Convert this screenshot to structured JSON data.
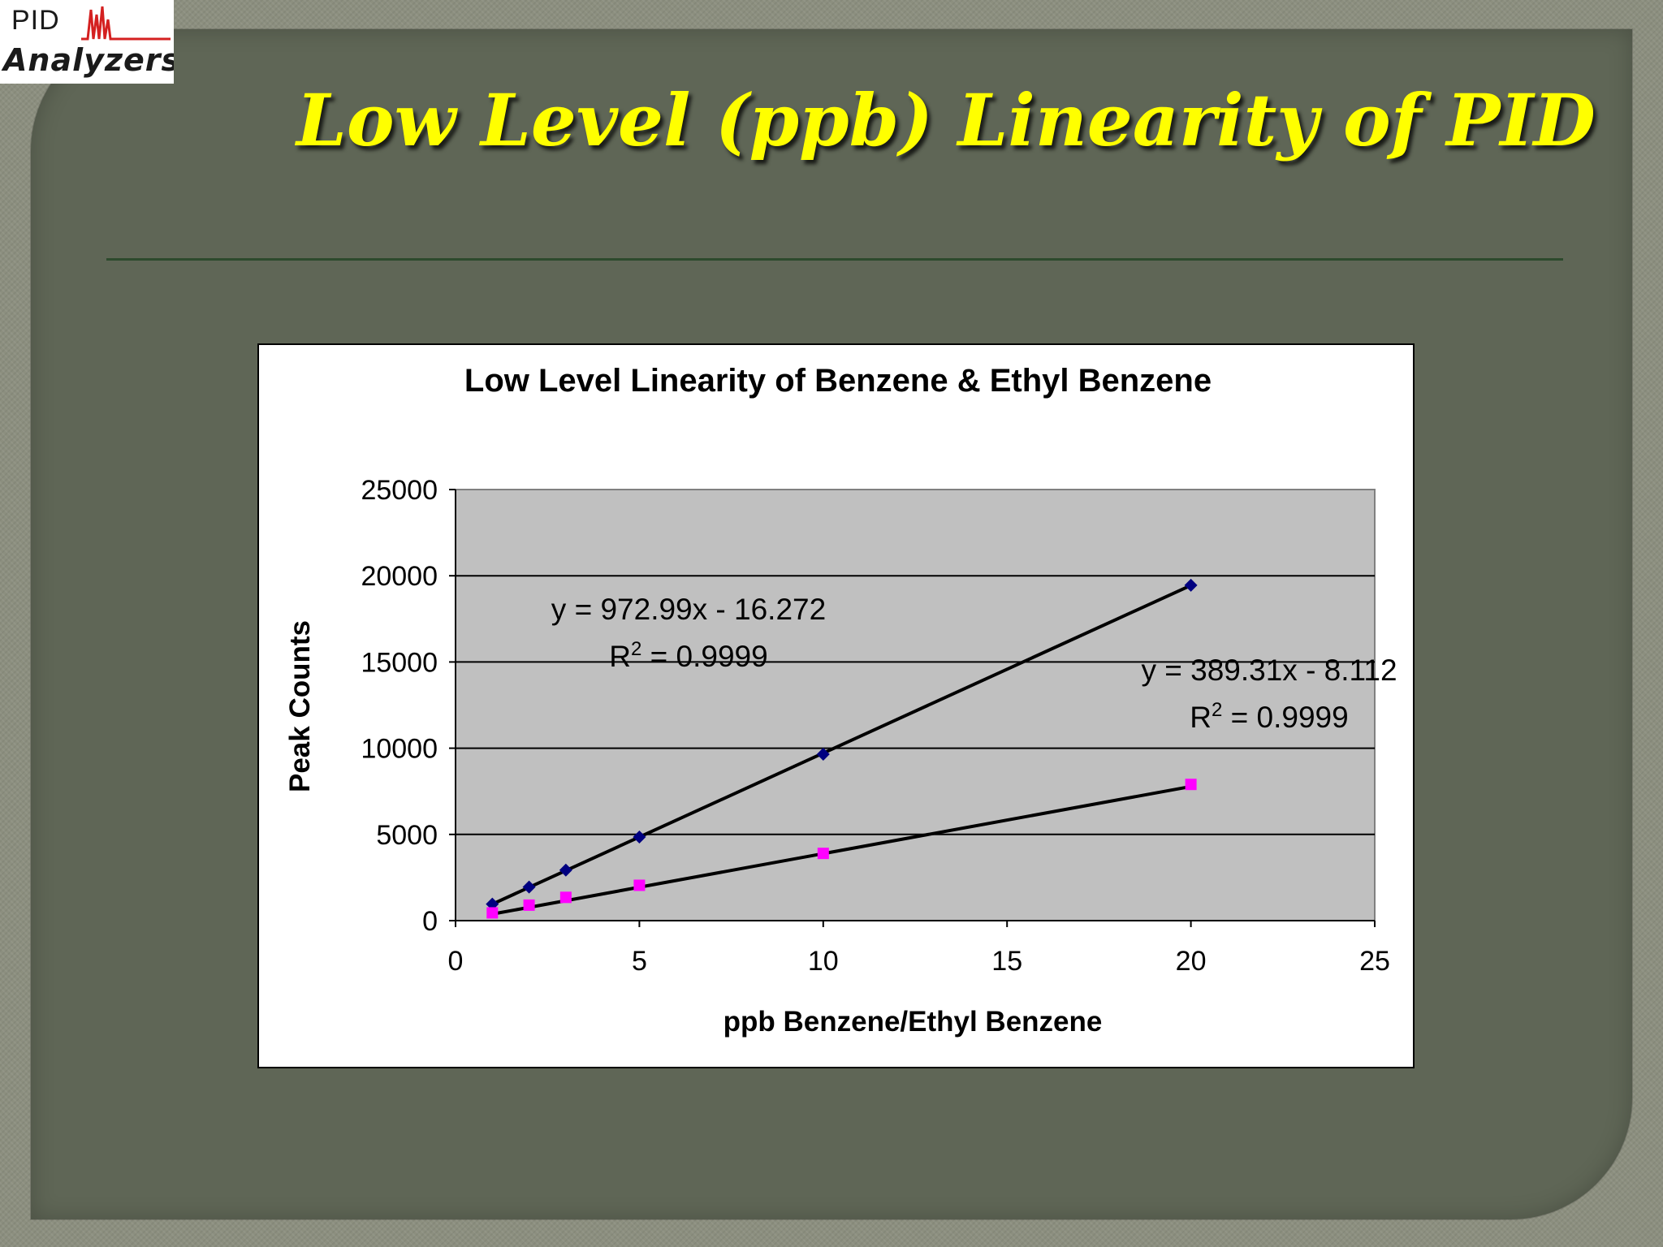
{
  "logo": {
    "text_top": "PID",
    "text_bottom": "Analyzers"
  },
  "slide": {
    "title": "Low Level (ppb) Linearity of PID"
  },
  "colors": {
    "title": "#ffff00",
    "panel": "#5f6656",
    "plot_area": "#c0c0c0",
    "benzene_marker": "#000080",
    "ethyl_benzene_marker": "#ff00ff",
    "trendline": "#000000"
  },
  "chart_data": {
    "type": "scatter",
    "title": "Low Level Linearity of Benzene & Ethyl Benzene",
    "xlabel": "ppb Benzene/Ethyl Benzene",
    "ylabel": "Peak Counts",
    "xlim": [
      0,
      25
    ],
    "ylim": [
      0,
      25000
    ],
    "x_ticks": [
      0,
      5,
      10,
      15,
      20,
      25
    ],
    "y_ticks": [
      0,
      5000,
      10000,
      15000,
      20000,
      25000
    ],
    "grid": "horizontal",
    "legend": "none",
    "series": [
      {
        "marker": "diamond",
        "color": "#000080",
        "x": [
          1,
          2,
          3,
          5,
          10,
          20
        ],
        "y": [
          960,
          1950,
          2930,
          4850,
          9650,
          19450
        ],
        "trendline": {
          "slope": 972.99,
          "intercept": -16.272,
          "equation": "y = 972.99x - 16.272",
          "r2_prefix": "R",
          "r2_sup": "2",
          "r2_value": " = 0.9999"
        }
      },
      {
        "marker": "square",
        "color": "#ff00ff",
        "x": [
          1,
          2,
          3,
          5,
          10,
          20
        ],
        "y": [
          450,
          900,
          1350,
          2050,
          3900,
          7900
        ],
        "trendline": {
          "slope": 389.31,
          "intercept": -8.112,
          "equation": "y = 389.31x - 8.112",
          "r2_prefix": "R",
          "r2_sup": "2",
          "r2_value": " = 0.9999"
        }
      }
    ]
  }
}
